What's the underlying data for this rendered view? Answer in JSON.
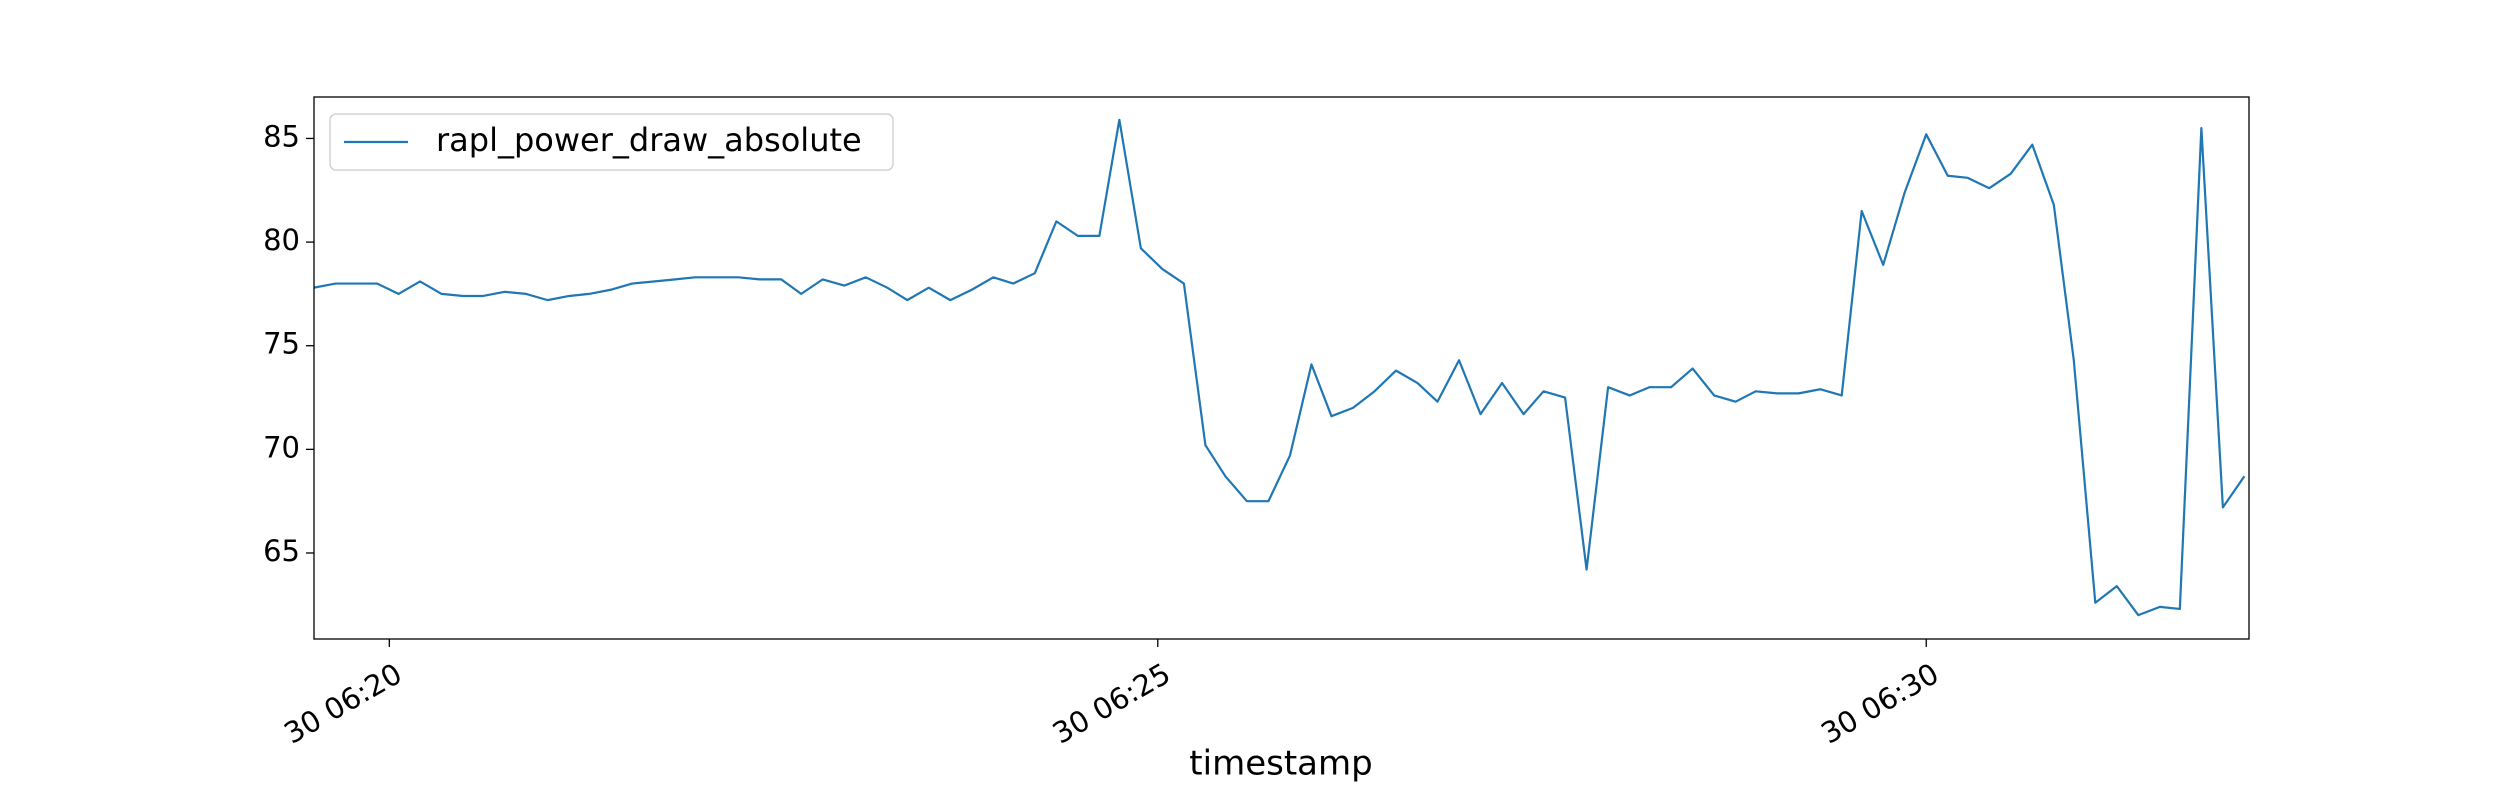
{
  "chart_data": {
    "type": "line",
    "x_label": "timestamp",
    "x": [
      19.51,
      19.65,
      19.79,
      19.92,
      20.06,
      20.2,
      20.34,
      20.48,
      20.61,
      20.75,
      20.89,
      21.03,
      21.17,
      21.3,
      21.44,
      21.58,
      21.72,
      21.86,
      21.99,
      22.13,
      22.27,
      22.41,
      22.55,
      22.68,
      22.82,
      22.96,
      23.1,
      23.24,
      23.37,
      23.51,
      23.65,
      23.79,
      23.93,
      24.06,
      24.2,
      24.34,
      24.48,
      24.62,
      24.75,
      24.89,
      25.03,
      25.17,
      25.31,
      25.44,
      25.58,
      25.72,
      25.86,
      26.0,
      26.13,
      26.27,
      26.41,
      26.55,
      26.69,
      26.82,
      26.96,
      27.1,
      27.24,
      27.38,
      27.51,
      27.65,
      27.79,
      27.93,
      28.07,
      28.2,
      28.34,
      28.48,
      28.62,
      28.76,
      28.89,
      29.03,
      29.17,
      29.31,
      29.45,
      29.58,
      29.72,
      29.86,
      30.0,
      30.14,
      30.27,
      30.41,
      30.55,
      30.69,
      30.83,
      30.96,
      31.1,
      31.24,
      31.38,
      31.52,
      31.65,
      31.79,
      31.93,
      32.07
    ],
    "series": [
      {
        "name": "rapl_power_draw_absolute",
        "color": "#1f77b4",
        "values": [
          77.8,
          78.0,
          78.0,
          78.0,
          77.5,
          78.1,
          77.5,
          77.4,
          77.4,
          77.6,
          77.5,
          77.2,
          77.4,
          77.5,
          77.7,
          78.0,
          78.1,
          78.2,
          78.3,
          78.3,
          78.3,
          78.2,
          78.2,
          77.5,
          78.2,
          77.9,
          78.3,
          77.8,
          77.2,
          77.8,
          77.2,
          77.7,
          78.3,
          78.0,
          78.5,
          81.0,
          80.3,
          80.3,
          85.9,
          79.7,
          78.7,
          78.0,
          70.2,
          68.7,
          67.5,
          67.5,
          69.7,
          74.1,
          71.6,
          72.0,
          72.8,
          73.8,
          73.2,
          72.3,
          74.3,
          71.7,
          73.2,
          71.7,
          72.8,
          72.5,
          64.2,
          73.0,
          72.6,
          73.0,
          73.0,
          73.9,
          72.6,
          72.3,
          72.8,
          72.7,
          72.7,
          72.9,
          72.6,
          81.5,
          78.9,
          82.4,
          85.2,
          83.2,
          83.1,
          82.6,
          83.3,
          84.7,
          81.8,
          74.3,
          62.6,
          63.4,
          62.0,
          62.4,
          62.3,
          85.5,
          67.2,
          68.7
        ]
      }
    ],
    "xlim": [
      19.51,
      32.1
    ],
    "xticks": [
      {
        "value": 20,
        "label": "30 06:20"
      },
      {
        "value": 25,
        "label": "30 06:25"
      },
      {
        "value": 30,
        "label": "30 06:30"
      }
    ],
    "ylim": [
      60.85,
      87.0
    ],
    "yticks": [
      65,
      70,
      75,
      80,
      85
    ],
    "legend": "upper left",
    "grid": false
  }
}
